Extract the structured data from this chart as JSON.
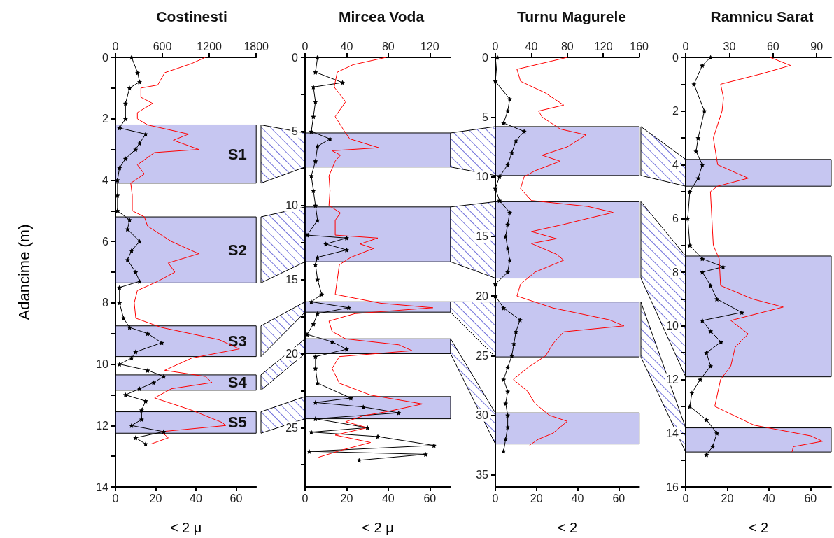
{
  "chart_data": [
    {
      "type": "line",
      "title": "Costinesti",
      "xlabel": "< 2 μ",
      "ylabel": "Adancime (m)",
      "xlim": [
        0,
        70
      ],
      "xticks": [
        0,
        20,
        40,
        60
      ],
      "x2lim": [
        0,
        1800
      ],
      "x2ticks": [
        0,
        600,
        1200,
        1800
      ],
      "ylim": [
        14,
        0
      ],
      "yticks": [
        0,
        {
          "value": 1,
          "label": null
        },
        2,
        {
          "value": 3,
          "label": null
        },
        4,
        {
          "value": 5,
          "label": null
        },
        6,
        {
          "value": 7,
          "label": null
        },
        8,
        {
          "value": 9,
          "label": null
        },
        10,
        {
          "value": 11,
          "label": null
        },
        12,
        {
          "value": 13,
          "label": null
        },
        14
      ],
      "bands": [
        {
          "axis": "y",
          "from": 2.2,
          "to": 4.1,
          "label": "S1",
          "color": "#3333cc"
        },
        {
          "axis": "y",
          "from": 5.2,
          "to": 7.35,
          "label": "S2",
          "color": "#3333cc"
        },
        {
          "axis": "y",
          "from": 8.75,
          "to": 9.75,
          "label": "S3",
          "color": "#3333cc"
        },
        {
          "axis": "y",
          "from": 10.35,
          "to": 10.85,
          "label": "S4",
          "color": "#3333cc"
        },
        {
          "axis": "y",
          "from": 11.55,
          "to": 12.25,
          "label": "S5",
          "color": "#3333cc"
        }
      ],
      "series": [
        {
          "color": "#000000",
          "marker": "star",
          "x": [
            8,
            11,
            12,
            7,
            5,
            5,
            2,
            15,
            12,
            10,
            5,
            2,
            1,
            1,
            1,
            7,
            6,
            12,
            8,
            6,
            10,
            12,
            2,
            2,
            4,
            7,
            16,
            23,
            10,
            8,
            2,
            16,
            24,
            19,
            12,
            5,
            15,
            13,
            13,
            8,
            24,
            10,
            15
          ],
          "values": [
            0,
            0.5,
            0.8,
            1,
            1.5,
            2,
            2.3,
            2.5,
            2.8,
            3,
            3.3,
            3.6,
            4,
            4.5,
            5,
            5.3,
            5.6,
            6,
            6.3,
            6.6,
            7,
            7.3,
            7.5,
            8,
            8.5,
            8.8,
            9,
            9.3,
            9.6,
            9.8,
            10,
            10.2,
            10.4,
            10.6,
            10.8,
            11,
            11.2,
            11.5,
            11.8,
            12,
            12.2,
            12.4,
            12.6
          ]
        },
        {
          "color": "#ff0000",
          "marker": "none",
          "axis": "x2",
          "x": [
            1150,
            975,
            630,
            540,
            325,
            325,
            475,
            280,
            280,
            410,
            935,
            740,
            1065,
            500,
            280,
            370,
            195,
            215,
            215,
            370,
            410,
            715,
            1065,
            675,
            760,
            540,
            280,
            240,
            260,
            585,
            1325,
            1585,
            975,
            630,
            1150,
            1235,
            715,
            500,
            975,
            1365,
            1410,
            585,
            675,
            455
          ],
          "values": [
            0,
            0.2,
            0.5,
            0.9,
            1,
            1.3,
            1.5,
            1.8,
            2,
            2.2,
            2.5,
            2.7,
            3,
            3.1,
            3.5,
            3.8,
            4.1,
            4.5,
            5,
            5.2,
            5.5,
            6,
            6.4,
            6.7,
            7,
            7.3,
            7.6,
            8,
            8.5,
            8.8,
            9.2,
            9.5,
            9.8,
            10.2,
            10.4,
            10.6,
            10.8,
            11.1,
            11.5,
            11.9,
            12,
            12.2,
            12.4,
            12.6
          ]
        }
      ]
    },
    {
      "type": "line",
      "title": "Mircea Voda",
      "xlabel": "< 2 μ",
      "xlim": [
        0,
        70
      ],
      "xticks": [
        0,
        20,
        40,
        60
      ],
      "x2lim": [
        0,
        140
      ],
      "x2ticks": [
        0,
        40,
        80,
        120
      ],
      "ylim": [
        29,
        0
      ],
      "yticks": [
        0,
        {
          "value": 2.5,
          "label": null
        },
        5,
        {
          "value": 7.5,
          "label": null
        },
        10,
        {
          "value": 12.5,
          "label": null
        },
        15,
        {
          "value": 17.5,
          "label": null
        },
        20,
        {
          "value": 22.5,
          "label": null
        },
        25,
        {
          "value": 27.5,
          "label": null
        }
      ],
      "bands": [
        {
          "axis": "y",
          "from": 5.1,
          "to": 7.4,
          "color": "#3333cc"
        },
        {
          "axis": "y",
          "from": 10.1,
          "to": 13.8,
          "color": "#3333cc"
        },
        {
          "axis": "y",
          "from": 16.5,
          "to": 17.2,
          "color": "#3333cc"
        },
        {
          "axis": "y",
          "from": 19,
          "to": 20,
          "color": "#3333cc"
        },
        {
          "axis": "y",
          "from": 22.9,
          "to": 24.4,
          "color": "#3333cc"
        }
      ],
      "series": [
        {
          "color": "#000000",
          "marker": "star",
          "x": [
            6,
            5,
            18,
            4,
            5,
            4,
            3,
            12,
            6,
            5,
            3,
            4,
            5,
            6,
            1,
            20,
            10,
            20,
            6,
            5,
            6,
            8,
            3,
            21,
            6,
            4,
            1,
            13,
            20,
            5,
            5,
            6,
            22,
            5,
            28,
            45,
            5,
            30,
            3,
            35,
            62,
            2,
            58,
            26
          ],
          "values": [
            0,
            1,
            1.7,
            2,
            3,
            4,
            5,
            5.5,
            6,
            7,
            8,
            9,
            10,
            11,
            12,
            12.2,
            12.6,
            13,
            13.5,
            14,
            15,
            16,
            16.5,
            16.9,
            17.3,
            18,
            18.7,
            19.2,
            19.7,
            20.2,
            21,
            22,
            23,
            23.3,
            23.6,
            24,
            24.4,
            25,
            25.3,
            25.6,
            26.2,
            26.6,
            26.8,
            27.2
          ]
        },
        {
          "color": "#ff0000",
          "marker": "none",
          "axis": "x2",
          "x": [
            78,
            46,
            31,
            28,
            39,
            29,
            38,
            43,
            71,
            26,
            34,
            29,
            23,
            24,
            23,
            34,
            29,
            29,
            70,
            53,
            66,
            44,
            33,
            31,
            29,
            73,
            123,
            48,
            23,
            26,
            39,
            90,
            103,
            33,
            26,
            33,
            63,
            113,
            80,
            56,
            39,
            60,
            29,
            63,
            36,
            13
          ],
          "values": [
            0,
            0.5,
            1,
            2,
            3,
            4,
            5,
            5.5,
            6.1,
            6.3,
            6.6,
            7,
            8,
            9,
            10,
            10.5,
            11,
            12,
            12.2,
            12.6,
            12.9,
            13.5,
            14,
            15,
            16,
            16.6,
            16.9,
            17.3,
            17.8,
            18.5,
            19,
            19.4,
            19.8,
            20.2,
            21,
            22,
            22.8,
            23.4,
            23.9,
            24.2,
            24.6,
            25,
            25.5,
            26,
            26.5,
            27
          ]
        }
      ]
    },
    {
      "type": "line",
      "title": "Turnu Magurele",
      "xlabel": "< 2",
      "xlim": [
        0,
        70
      ],
      "xticks": [
        0,
        20,
        40,
        60
      ],
      "x2lim": [
        0,
        160
      ],
      "x2ticks": [
        0,
        40,
        80,
        120,
        160
      ],
      "ylim": [
        36,
        0
      ],
      "yticks": [
        0,
        5,
        10,
        15,
        20,
        25,
        30,
        35
      ],
      "bands": [
        {
          "axis": "y",
          "from": 5.8,
          "to": 9.9,
          "color": "#3333cc"
        },
        {
          "axis": "y",
          "from": 12.1,
          "to": 18.5,
          "color": "#3333cc"
        },
        {
          "axis": "y",
          "from": 20.5,
          "to": 25.1,
          "color": "#3333cc"
        },
        {
          "axis": "y",
          "from": 29.8,
          "to": 32.4,
          "color": "#3333cc"
        }
      ],
      "series": [
        {
          "color": "#000000",
          "marker": "star",
          "x": [
            1,
            0,
            7,
            6,
            4,
            14,
            10,
            8,
            6,
            2,
            0,
            2,
            7,
            6,
            5,
            6,
            7,
            6,
            0,
            0,
            4,
            12,
            10,
            9,
            8,
            6,
            4,
            6,
            5,
            6,
            6,
            5,
            4
          ],
          "values": [
            0,
            2,
            3.5,
            4.5,
            5.5,
            6.2,
            7,
            8,
            9,
            10,
            11,
            12,
            13,
            14,
            15,
            16,
            17,
            18,
            19,
            20,
            21,
            22,
            23,
            24,
            25,
            26,
            27,
            28,
            29,
            30,
            31,
            32,
            33
          ]
        },
        {
          "color": "#ff0000",
          "marker": "none",
          "axis": "x2",
          "x": [
            80,
            24,
            28,
            56,
            76,
            48,
            52,
            72,
            101,
            80,
            52,
            72,
            44,
            32,
            28,
            40,
            103,
            131,
            103,
            76,
            40,
            68,
            40,
            68,
            76,
            44,
            28,
            24,
            64,
            127,
            143,
            76,
            64,
            56,
            36,
            20,
            36,
            44,
            60,
            80,
            72,
            64,
            48,
            38
          ],
          "values": [
            0,
            1,
            2,
            3,
            4,
            4.5,
            5,
            6,
            6.5,
            7.5,
            8.2,
            8.7,
            9.5,
            10,
            11,
            12,
            12.5,
            13,
            13.5,
            14,
            14.6,
            15.2,
            15.6,
            16.5,
            17,
            18,
            19,
            20,
            21,
            22,
            22.5,
            23,
            24,
            25,
            26,
            27,
            28,
            29,
            30,
            30.5,
            31,
            31.5,
            32,
            32.5
          ]
        }
      ]
    },
    {
      "type": "line",
      "title": "Ramnicu Sarat",
      "xlabel": "< 2",
      "xlim": [
        0,
        70
      ],
      "xticks": [
        0,
        20,
        40,
        60
      ],
      "x2lim": [
        0,
        100
      ],
      "x2ticks": [
        0,
        30,
        60,
        90
      ],
      "ylim": [
        16,
        0
      ],
      "yticks": [
        0,
        {
          "value": 1,
          "label": null
        },
        2,
        {
          "value": 3,
          "label": null
        },
        4,
        {
          "value": 5,
          "label": null
        },
        6,
        {
          "value": 7,
          "label": null
        },
        8,
        {
          "value": 9,
          "label": null
        },
        10,
        {
          "value": 11,
          "label": null
        },
        12,
        {
          "value": 13,
          "label": null
        },
        14,
        {
          "value": 15,
          "label": null
        },
        16
      ],
      "bands": [
        {
          "axis": "y",
          "from": 3.8,
          "to": 4.8,
          "color": "#3333cc"
        },
        {
          "axis": "y",
          "from": 7.4,
          "to": 11.9,
          "color": "#3333cc"
        },
        {
          "axis": "y",
          "from": 13.8,
          "to": 14.7,
          "color": "#3333cc"
        }
      ],
      "series": [
        {
          "color": "#000000",
          "marker": "star",
          "x": [
            12,
            8,
            4,
            9,
            6,
            5,
            8,
            6,
            2,
            1,
            2,
            8,
            18,
            8,
            12,
            15,
            27,
            8,
            12,
            17,
            10,
            12,
            7,
            3,
            2,
            10,
            15,
            13,
            10
          ],
          "values": [
            0,
            0.3,
            1,
            2,
            3,
            3.5,
            4,
            4.5,
            5,
            6,
            7,
            7.5,
            7.8,
            8,
            8.5,
            9,
            9.5,
            9.8,
            10.2,
            10.6,
            11,
            11.5,
            12,
            12.5,
            13,
            13.5,
            14,
            14.5,
            14.8
          ]
        },
        {
          "color": "#ff0000",
          "marker": "none",
          "axis": "x2",
          "x": [
            58,
            72,
            53,
            24,
            26,
            25,
            19,
            22,
            43,
            22,
            17,
            18,
            19,
            23,
            24,
            46,
            67,
            31,
            43,
            34,
            31,
            24,
            20,
            47,
            86,
            94,
            74,
            73
          ],
          "values": [
            0,
            0.3,
            0.6,
            1,
            1.5,
            2,
            3,
            4,
            4.5,
            4.8,
            5,
            6,
            7,
            7.5,
            8.5,
            9,
            9.3,
            9.8,
            10.3,
            10.8,
            11.5,
            12,
            13,
            13.7,
            14.1,
            14.3,
            14.5,
            14.7
          ]
        }
      ]
    }
  ]
}
